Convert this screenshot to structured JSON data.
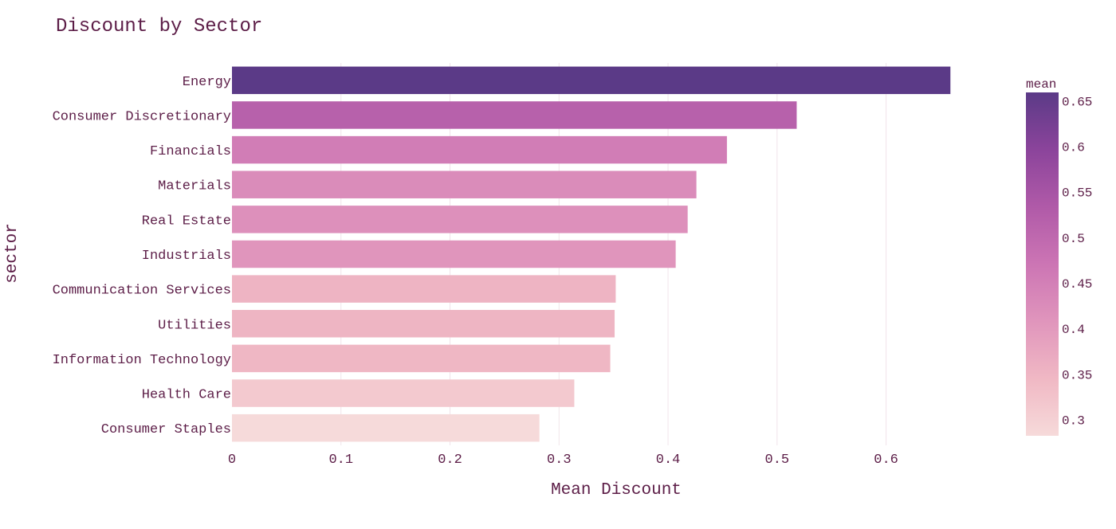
{
  "chart_data": {
    "type": "bar",
    "orientation": "horizontal",
    "title": "Discount by Sector",
    "xlabel": "Mean Discount",
    "ylabel": "sector",
    "categories": [
      "Energy",
      "Consumer Discretionary",
      "Financials",
      "Materials",
      "Real Estate",
      "Industrials",
      "Communication Services",
      "Utilities",
      "Information Technology",
      "Health Care",
      "Consumer Staples"
    ],
    "values": [
      0.659,
      0.518,
      0.454,
      0.426,
      0.418,
      0.407,
      0.352,
      0.351,
      0.347,
      0.314,
      0.282
    ],
    "xlim": [
      0,
      0.68
    ],
    "xticks": [
      0,
      0.1,
      0.2,
      0.3,
      0.4,
      0.5,
      0.6
    ],
    "xtick_labels": [
      "0",
      "0.1",
      "0.2",
      "0.3",
      "0.4",
      "0.5",
      "0.6"
    ],
    "grid": true,
    "colorbar": {
      "title": "mean",
      "placement": "right",
      "range": [
        0.282,
        0.659
      ],
      "ticks": [
        0.3,
        0.35,
        0.4,
        0.45,
        0.5,
        0.55,
        0.6,
        0.65
      ],
      "tick_labels": [
        "0.3",
        "0.35",
        "0.4",
        "0.45",
        "0.5",
        "0.55",
        "0.6",
        "0.65"
      ],
      "colorscale": [
        "#f6dada",
        "#f0b8c4",
        "#e095bc",
        "#cc75b4",
        "#b05aa8",
        "#8b449b",
        "#5b3a87"
      ]
    },
    "colors": {
      "text": "#5c1d47",
      "grid": "#f1e4ea",
      "background": "#ffffff"
    }
  }
}
